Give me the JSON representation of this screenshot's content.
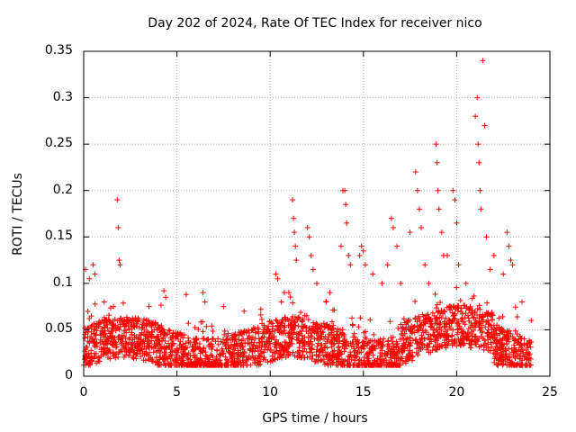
{
  "chart_data": {
    "type": "scatter",
    "title": "Day 202 of 2024, Rate Of TEC Index for receiver nico",
    "xlabel": "GPS time / hours",
    "ylabel": "ROTI / TECUs",
    "xlim": [
      0,
      25
    ],
    "ylim": [
      0,
      0.35
    ],
    "xticks": [
      "0",
      "5",
      "10",
      "15",
      "20",
      "25"
    ],
    "yticks": [
      "0",
      "0.05",
      "0.1",
      "0.15",
      "0.2",
      "0.25",
      "0.3",
      "0.35"
    ],
    "grid": true,
    "marker": "+",
    "color": "#ff0000",
    "series": [
      {
        "points": [
          [
            0.1,
            0.115
          ],
          [
            0.3,
            0.105
          ],
          [
            0.5,
            0.12
          ],
          [
            0.6,
            0.11
          ],
          [
            1.1,
            0.08
          ],
          [
            1.6,
            0.075
          ],
          [
            1.8,
            0.19
          ],
          [
            1.85,
            0.16
          ],
          [
            1.9,
            0.125
          ],
          [
            1.95,
            0.12
          ],
          [
            3.5,
            0.075
          ],
          [
            4.3,
            0.092
          ],
          [
            4.4,
            0.085
          ],
          [
            5.5,
            0.088
          ],
          [
            6.4,
            0.09
          ],
          [
            6.5,
            0.08
          ],
          [
            7.5,
            0.075
          ],
          [
            8.6,
            0.07
          ],
          [
            9.5,
            0.072
          ],
          [
            10.3,
            0.11
          ],
          [
            10.4,
            0.105
          ],
          [
            10.6,
            0.08
          ],
          [
            11.0,
            0.09
          ],
          [
            11.2,
            0.19
          ],
          [
            11.25,
            0.17
          ],
          [
            11.3,
            0.155
          ],
          [
            11.35,
            0.14
          ],
          [
            11.4,
            0.125
          ],
          [
            12.0,
            0.16
          ],
          [
            12.1,
            0.15
          ],
          [
            12.2,
            0.13
          ],
          [
            12.3,
            0.115
          ],
          [
            12.5,
            0.1
          ],
          [
            13.0,
            0.08
          ],
          [
            13.2,
            0.09
          ],
          [
            13.8,
            0.14
          ],
          [
            13.9,
            0.2
          ],
          [
            14.0,
            0.2
          ],
          [
            14.05,
            0.185
          ],
          [
            14.1,
            0.165
          ],
          [
            14.2,
            0.13
          ],
          [
            14.3,
            0.12
          ],
          [
            14.8,
            0.13
          ],
          [
            14.9,
            0.14
          ],
          [
            15.0,
            0.135
          ],
          [
            15.1,
            0.12
          ],
          [
            15.5,
            0.11
          ],
          [
            16.0,
            0.1
          ],
          [
            16.3,
            0.12
          ],
          [
            16.5,
            0.17
          ],
          [
            16.6,
            0.16
          ],
          [
            16.8,
            0.14
          ],
          [
            17.0,
            0.1
          ],
          [
            17.5,
            0.155
          ],
          [
            17.8,
            0.22
          ],
          [
            17.9,
            0.2
          ],
          [
            18.0,
            0.18
          ],
          [
            18.1,
            0.16
          ],
          [
            18.3,
            0.12
          ],
          [
            18.5,
            0.1
          ],
          [
            18.9,
            0.25
          ],
          [
            18.95,
            0.23
          ],
          [
            19.0,
            0.2
          ],
          [
            19.05,
            0.18
          ],
          [
            19.2,
            0.155
          ],
          [
            19.3,
            0.13
          ],
          [
            19.5,
            0.13
          ],
          [
            19.8,
            0.2
          ],
          [
            19.9,
            0.19
          ],
          [
            20.0,
            0.165
          ],
          [
            20.1,
            0.12
          ],
          [
            20.5,
            0.1
          ],
          [
            21.0,
            0.28
          ],
          [
            21.1,
            0.3
          ],
          [
            21.15,
            0.25
          ],
          [
            21.2,
            0.23
          ],
          [
            21.25,
            0.2
          ],
          [
            21.3,
            0.18
          ],
          [
            21.4,
            0.34
          ],
          [
            21.5,
            0.27
          ],
          [
            21.6,
            0.15
          ],
          [
            21.8,
            0.115
          ],
          [
            22.0,
            0.13
          ],
          [
            22.5,
            0.11
          ],
          [
            22.7,
            0.155
          ],
          [
            22.8,
            0.14
          ],
          [
            22.9,
            0.125
          ],
          [
            23.0,
            0.12
          ],
          [
            23.5,
            0.08
          ],
          [
            24.0,
            0.06
          ]
        ]
      }
    ]
  }
}
